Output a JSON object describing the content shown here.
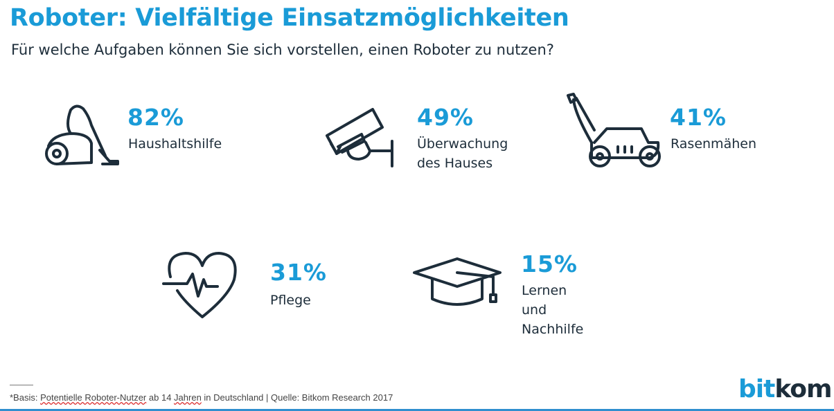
{
  "title": "Roboter: Vielfältige Einsatzmöglichkeiten",
  "subtitle": "Für welche Aufgaben können Sie sich vorstellen, einen Roboter zu nutzen?",
  "chart_data": {
    "type": "table",
    "categories": [
      "Haushaltshilfe",
      "Überwachung des Hauses",
      "Rasenmähen",
      "Pflege",
      "Lernen und Nachhilfe"
    ],
    "values": [
      82,
      49,
      41,
      31,
      15
    ],
    "unit": "%",
    "items": [
      {
        "value": "82%",
        "label_lines": [
          "Haushaltshilfe"
        ],
        "icon": "vacuum-cleaner-icon"
      },
      {
        "value": "49%",
        "label_lines": [
          "Überwachung",
          "des Hauses"
        ],
        "icon": "security-camera-icon"
      },
      {
        "value": "41%",
        "label_lines": [
          "Rasenmähen"
        ],
        "icon": "lawn-mower-icon"
      },
      {
        "value": "31%",
        "label_lines": [
          "Pflege"
        ],
        "icon": "heart-pulse-icon"
      },
      {
        "value": "15%",
        "label_lines": [
          "Lernen und",
          "Nachhilfe"
        ],
        "icon": "graduation-cap-icon"
      }
    ]
  },
  "footer": {
    "prefix": "*Basis: ",
    "underlined1": "Potentielle Roboter-Nutzer",
    "middle": " ab 14 ",
    "underlined2": "Jahren",
    "suffix": "  in Deutschland | Quelle: Bitkom Research 2017"
  },
  "logo": {
    "part1": "bit",
    "part2": "kom"
  },
  "colors": {
    "accent": "#1a9bd7",
    "text": "#1d2d3a",
    "bottom_line": "#2f8fcf"
  }
}
